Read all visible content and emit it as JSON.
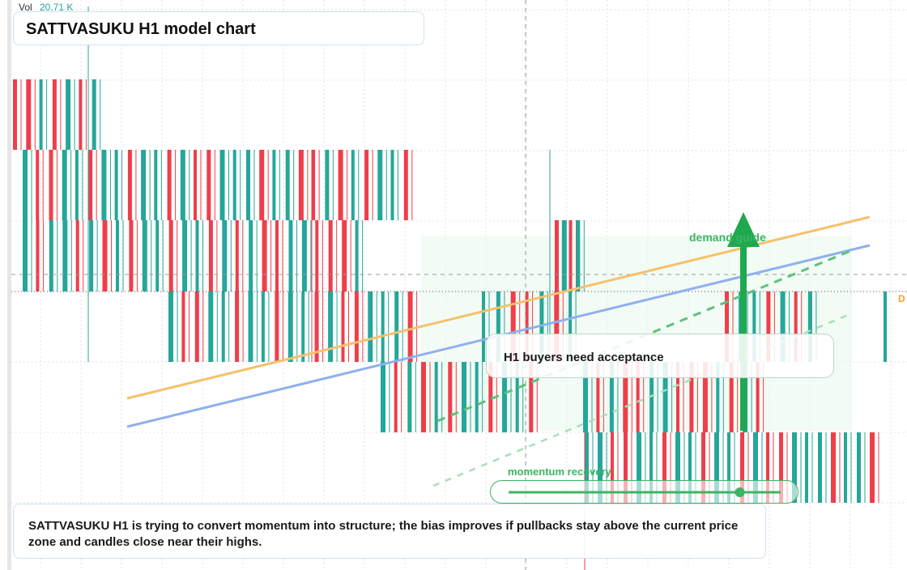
{
  "header": {
    "title": "SATTVASUKU H1 model chart",
    "volume_label": "Vol",
    "volume_value": "20.71 K"
  },
  "annotations": {
    "demand": "demand guide",
    "callout": "H1 buyers need acceptance",
    "momentum": "momentum recovery",
    "price_badge": "D",
    "note": "SATTVASUKU H1 is trying to convert momentum into structure; the bias improves if pullbacks stay above the current price zone and candles close near their highs."
  },
  "colors": {
    "up": "#26a69a",
    "down": "#ef3e4a",
    "trend_orange": "#f5c16c",
    "trend_blue": "#8fb0ee",
    "accent_green": "#1fa84f",
    "zone_green": "#e9f7ec"
  },
  "chart_data": {
    "type": "candlestick",
    "title": "SATTVASUKU H1 model chart",
    "volume": "20.71 K",
    "series": [
      {
        "name": "",
        "candles": [
          {
            "dir": "down"
          },
          {
            "dir": "down"
          },
          {
            "dir": "up"
          },
          {
            "dir": "down"
          },
          {
            "dir": "up"
          },
          {
            "dir": "down"
          },
          {
            "dir": "up"
          },
          {
            "dir": "up"
          },
          {
            "dir": "down"
          },
          {
            "dir": "down"
          },
          {
            "dir": "up"
          },
          {
            "dir": "up"
          },
          {
            "dir": "down"
          },
          {
            "dir": "up"
          },
          {
            "dir": "up"
          },
          {
            "dir": "down"
          },
          {
            "dir": "up"
          },
          {
            "dir": "up"
          },
          {
            "dir": "down"
          },
          {
            "dir": "up"
          },
          {
            "dir": "down"
          },
          {
            "dir": "down"
          },
          {
            "dir": "up"
          },
          {
            "dir": "up"
          },
          {
            "dir": "up"
          },
          {
            "dir": "down"
          },
          {
            "dir": "up"
          },
          {
            "dir": "up"
          },
          {
            "dir": "down"
          },
          {
            "dir": "down"
          },
          {
            "dir": "up"
          },
          {
            "dir": "down"
          },
          {
            "dir": "up"
          },
          {
            "dir": "down"
          },
          {
            "dir": "up"
          },
          {
            "dir": "up"
          },
          {
            "dir": "down"
          },
          {
            "dir": "up"
          },
          {
            "dir": "down"
          },
          {
            "dir": "up"
          },
          {
            "dir": "up"
          },
          {
            "dir": "down"
          },
          {
            "dir": "up"
          },
          {
            "dir": "down"
          },
          {
            "dir": "up"
          },
          {
            "dir": "down"
          },
          {
            "dir": "up"
          },
          {
            "dir": "up"
          },
          {
            "dir": "down"
          },
          {
            "dir": "up"
          },
          {
            "dir": "up"
          },
          {
            "dir": "down"
          },
          {
            "dir": "up"
          },
          {
            "dir": "down"
          },
          {
            "dir": "up"
          },
          {
            "dir": "down"
          },
          {
            "dir": "down"
          },
          {
            "dir": "up"
          },
          {
            "dir": "up"
          },
          {
            "dir": "down"
          }
        ]
      }
    ],
    "overlays": [
      {
        "label": "demand guide",
        "kind": "arrow-up"
      },
      {
        "label": "H1 buyers need acceptance",
        "kind": "callout"
      },
      {
        "label": "momentum recovery",
        "kind": "slider",
        "level": 0.85
      }
    ],
    "grid": true
  }
}
